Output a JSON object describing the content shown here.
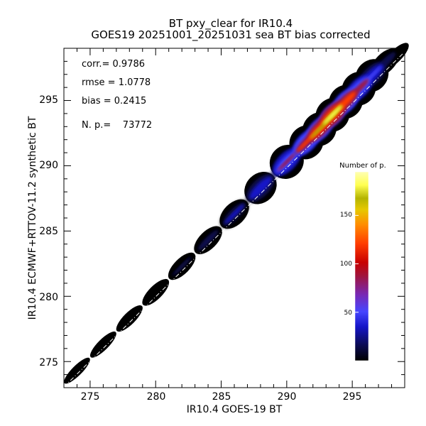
{
  "chart_data": {
    "type": "density-scatter",
    "title": "BT pxy_clear for IR10.4",
    "subtitle": "GOES19 20251001_20251031 sea BT bias corrected",
    "xlabel": "IR10.4 GOES-19 BT",
    "ylabel": "IR10.4 ECMWF+RTTOV-11.2 synthetic BT",
    "xlim": [
      273,
      299
    ],
    "ylim": [
      273,
      299
    ],
    "x_ticks": [
      "275",
      "280",
      "285",
      "290",
      "295"
    ],
    "y_ticks": [
      "275",
      "280",
      "285",
      "290",
      "295"
    ],
    "reference_line": "y = x (dash-dot)",
    "stats": {
      "corr": "corr.= 0.9786",
      "rmse": "rmse = 1.0778",
      "bias": "bias = 0.2415",
      "npoints": "N. p.=    73772"
    },
    "colorbar": {
      "title": "Number of p.",
      "ticks": [
        "50",
        "100",
        "150"
      ],
      "range": [
        0,
        195
      ],
      "colors": [
        "#000000",
        "#0a0a50",
        "#1414c8",
        "#4646ff",
        "#7828b4",
        "#a0143c",
        "#c80000",
        "#ff3c00",
        "#ff8c00",
        "#e6c800",
        "#b4b400",
        "#ffff50",
        "#ffffb4"
      ]
    },
    "density_ridge": [
      {
        "x": 274.0,
        "y": 274.3,
        "count": 2
      },
      {
        "x": 276.0,
        "y": 276.3,
        "count": 4
      },
      {
        "x": 278.0,
        "y": 278.3,
        "count": 7
      },
      {
        "x": 280.0,
        "y": 280.3,
        "count": 11
      },
      {
        "x": 282.0,
        "y": 282.3,
        "count": 16
      },
      {
        "x": 284.0,
        "y": 284.3,
        "count": 22
      },
      {
        "x": 286.0,
        "y": 286.3,
        "count": 32
      },
      {
        "x": 288.0,
        "y": 288.3,
        "count": 50
      },
      {
        "x": 290.0,
        "y": 290.3,
        "count": 85
      },
      {
        "x": 291.5,
        "y": 291.8,
        "count": 120
      },
      {
        "x": 292.5,
        "y": 292.8,
        "count": 165
      },
      {
        "x": 293.5,
        "y": 293.9,
        "count": 190
      },
      {
        "x": 294.5,
        "y": 294.9,
        "count": 150
      },
      {
        "x": 295.5,
        "y": 295.9,
        "count": 100
      },
      {
        "x": 296.5,
        "y": 296.9,
        "count": 55
      },
      {
        "x": 297.5,
        "y": 297.9,
        "count": 25
      },
      {
        "x": 298.3,
        "y": 298.4,
        "count": 8
      }
    ]
  }
}
